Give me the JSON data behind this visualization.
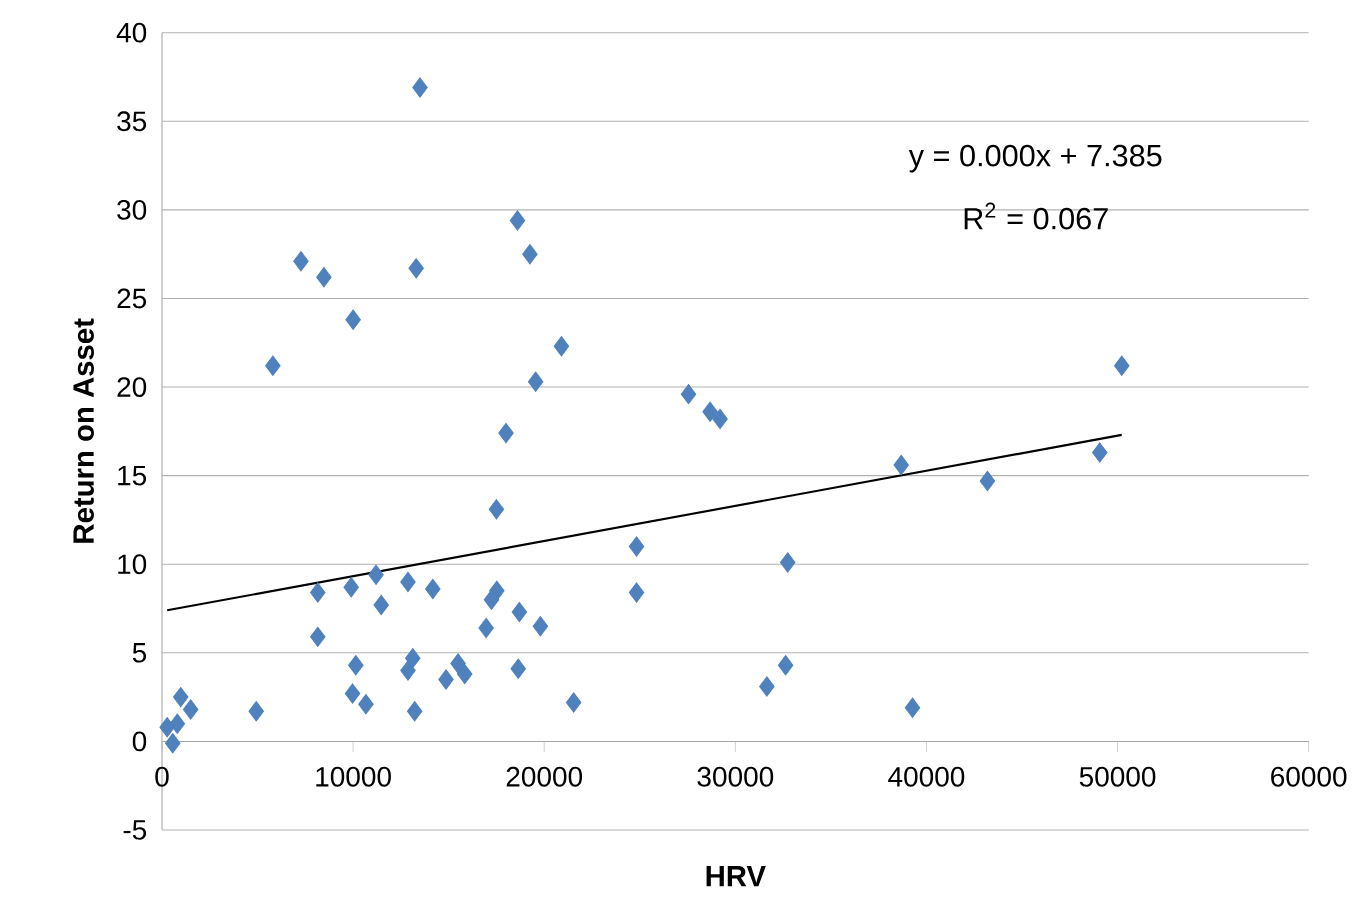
{
  "chart_data": {
    "type": "scatter",
    "xlabel": "HRV",
    "ylabel": "Return on Asset",
    "annotations": [
      "y = 0.000x + 7.385",
      "R$^{2}$ = 0.067"
    ],
    "xlim": [
      0,
      60000
    ],
    "xticks": [
      0,
      10000,
      20000,
      30000,
      40000,
      50000,
      60000
    ],
    "ylim": [
      -5,
      40
    ],
    "yticks": [
      -5,
      0,
      5,
      10,
      15,
      20,
      25,
      30,
      35,
      40
    ],
    "grid": "y",
    "legend": false,
    "marker": "diamond",
    "series": [
      {
        "color": "#4f81bd",
        "x": [
          13500,
          18600,
          19250,
          7270,
          8470,
          13300,
          10000,
          5800,
          20900,
          19550,
          18000,
          17500,
          8150,
          9900,
          11200,
          11470,
          12870,
          14170,
          17520,
          17240,
          16960,
          18700,
          19800,
          8150,
          10140,
          13120,
          12870,
          9970,
          10670,
          13220,
          14860,
          15490,
          15840,
          18640,
          21540,
          4930,
          560,
          800,
          980,
          1500,
          270,
          27550,
          28680,
          29200,
          50220,
          49070,
          38680,
          43190,
          24830,
          24830,
          32740,
          31650,
          32630,
          39270
        ],
        "values": [
          36.9,
          29.4,
          27.5,
          27.1,
          26.2,
          26.7,
          23.8,
          21.2,
          22.3,
          20.3,
          17.4,
          13.1,
          8.4,
          8.7,
          9.4,
          7.7,
          9.0,
          8.6,
          8.5,
          8.0,
          6.4,
          7.3,
          6.5,
          5.9,
          4.3,
          4.7,
          4.0,
          2.7,
          2.1,
          1.7,
          3.5,
          4.4,
          3.8,
          4.1,
          2.2,
          1.7,
          -0.1,
          1.0,
          2.5,
          1.8,
          0.8,
          19.6,
          18.6,
          18.2,
          21.2,
          16.3,
          15.6,
          14.7,
          11.0,
          8.4,
          10.1,
          3.1,
          4.3,
          1.9
        ]
      },
      {
        "type": "line",
        "marker": "none",
        "color": "#000000",
        "line_style": "solid",
        "x": [
          270,
          50220
        ],
        "values": [
          7.4,
          17.3
        ]
      }
    ]
  }
}
